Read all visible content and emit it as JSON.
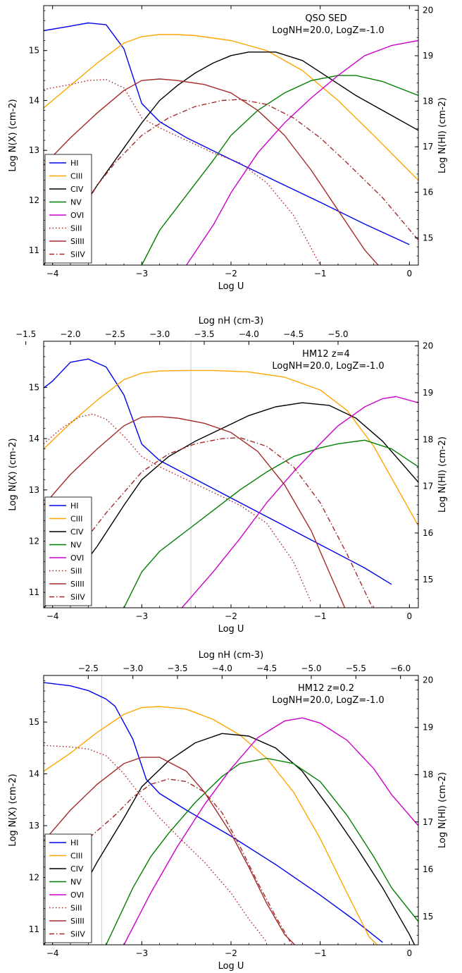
{
  "colors": {
    "HI": "#0000ee",
    "CIII": "#ffa500",
    "CIV": "#000000",
    "NV": "#007f00",
    "OVI": "#cc00cc",
    "SiII": "#b22222",
    "SiIII": "#a52a2a",
    "SiIV": "#a52a2a",
    "frame": "#000000",
    "vline": "#c8c8c8"
  },
  "chart_data": [
    {
      "type": "line",
      "title": "QSO SED",
      "subtitle": "LogNH=20.0, LogZ=-1.0",
      "xlabel": "Log U",
      "ylabel": "Log N(X) (cm-2)",
      "y2label": "Log N(HI) (cm-2)",
      "xlim": [
        -4.1,
        0.1
      ],
      "ylim": [
        10.7,
        15.9
      ],
      "y2lim": [
        14.4,
        20.1
      ],
      "xticks": [
        -4,
        -3,
        -2,
        -1,
        0
      ],
      "xtick_labels": [
        "−4",
        "−3",
        "−2",
        "−1",
        "0"
      ],
      "yticks": [
        11,
        12,
        13,
        14,
        15
      ],
      "yticks2": [
        15,
        16,
        17,
        18,
        19,
        20
      ],
      "legend": "lower-left",
      "series": [
        {
          "name": "HI",
          "style": "solid",
          "axis": "right",
          "x": [
            -4.1,
            -3.8,
            -3.6,
            -3.4,
            -3.2,
            -3.0,
            -2.8,
            -2.5,
            -2.0,
            -1.5,
            -1.0,
            -0.5,
            0.0
          ],
          "y": [
            19.55,
            19.65,
            19.72,
            19.68,
            19.15,
            17.95,
            17.55,
            17.2,
            16.72,
            16.25,
            15.78,
            15.3,
            14.85
          ]
        },
        {
          "name": "CIII",
          "style": "solid",
          "axis": "left",
          "x": [
            -4.1,
            -3.8,
            -3.5,
            -3.2,
            -3.0,
            -2.8,
            -2.6,
            -2.4,
            -2.0,
            -1.6,
            -1.2,
            -0.8,
            -0.4,
            0.1
          ],
          "y": [
            13.85,
            14.3,
            14.75,
            15.15,
            15.28,
            15.32,
            15.32,
            15.3,
            15.2,
            15.0,
            14.6,
            14.0,
            13.3,
            12.4
          ]
        },
        {
          "name": "CIV",
          "style": "solid",
          "axis": "left",
          "x": [
            -4.1,
            -3.8,
            -3.5,
            -3.2,
            -3.0,
            -2.8,
            -2.6,
            -2.4,
            -2.2,
            -2.0,
            -1.8,
            -1.5,
            -1.2,
            -0.9,
            -0.6,
            -0.3,
            0.1
          ],
          "y": [
            10.7,
            11.5,
            12.3,
            13.05,
            13.55,
            14.0,
            14.3,
            14.55,
            14.75,
            14.9,
            14.97,
            14.97,
            14.8,
            14.45,
            14.1,
            13.8,
            13.4
          ]
        },
        {
          "name": "NV",
          "style": "solid",
          "axis": "left",
          "x": [
            -3.0,
            -2.8,
            -2.5,
            -2.2,
            -2.0,
            -1.7,
            -1.4,
            -1.1,
            -0.8,
            -0.6,
            -0.3,
            0.1
          ],
          "y": [
            10.7,
            11.4,
            12.1,
            12.8,
            13.3,
            13.8,
            14.15,
            14.4,
            14.5,
            14.5,
            14.38,
            14.1
          ]
        },
        {
          "name": "OVI",
          "style": "solid",
          "axis": "left",
          "x": [
            -2.5,
            -2.2,
            -2.0,
            -1.7,
            -1.4,
            -1.1,
            -0.8,
            -0.5,
            -0.2,
            0.1
          ],
          "y": [
            10.7,
            11.5,
            12.15,
            12.95,
            13.55,
            14.05,
            14.5,
            14.9,
            15.1,
            15.2
          ]
        },
        {
          "name": "SiII",
          "style": "dotted",
          "axis": "left",
          "x": [
            -4.1,
            -3.8,
            -3.6,
            -3.4,
            -3.2,
            -3.0,
            -2.8,
            -2.5,
            -2.2,
            -1.9,
            -1.6,
            -1.3,
            -1.0
          ],
          "y": [
            14.22,
            14.32,
            14.4,
            14.42,
            14.25,
            13.65,
            13.45,
            13.2,
            12.95,
            12.75,
            12.35,
            11.7,
            10.7
          ]
        },
        {
          "name": "SiIII",
          "style": "solid",
          "axis": "left",
          "x": [
            -4.1,
            -3.8,
            -3.5,
            -3.2,
            -3.0,
            -2.8,
            -2.6,
            -2.3,
            -2.0,
            -1.7,
            -1.4,
            -1.1,
            -0.8,
            -0.5,
            -0.3
          ],
          "y": [
            12.7,
            13.25,
            13.75,
            14.2,
            14.4,
            14.43,
            14.4,
            14.32,
            14.15,
            13.8,
            13.3,
            12.6,
            11.8,
            11.0,
            10.6
          ]
        },
        {
          "name": "SiIV",
          "style": "dashdot",
          "axis": "left",
          "x": [
            -3.9,
            -3.7,
            -3.5,
            -3.3,
            -3.0,
            -2.7,
            -2.4,
            -2.1,
            -1.9,
            -1.6,
            -1.3,
            -1.0,
            -0.7,
            -0.3,
            0.1
          ],
          "y": [
            11.1,
            11.7,
            12.3,
            12.75,
            13.3,
            13.65,
            13.88,
            14.0,
            14.02,
            13.92,
            13.65,
            13.25,
            12.75,
            12.05,
            11.2
          ]
        }
      ]
    },
    {
      "type": "line",
      "title": "HM12 z=4",
      "subtitle": "LogNH=20.0, LogZ=-1.0",
      "xlabel": "Log U",
      "ylabel": "Log N(X) (cm-2)",
      "y2label": "Log N(HI) (cm-2)",
      "top_xlabel": "Log nH (cm-3)",
      "top_ticks": [
        -1.5,
        -2.0,
        -2.5,
        -3.0,
        -3.5,
        -4.0,
        -4.5,
        -5.0
      ],
      "top_tick_labels": [
        "−1.5",
        "−2.0",
        "−2.5",
        "−3.0",
        "−3.5",
        "−4.0",
        "−4.5",
        "−5.0"
      ],
      "top_offset": -5.8,
      "vline_x": -2.45,
      "xlim": [
        -4.1,
        0.1
      ],
      "ylim": [
        10.7,
        15.9
      ],
      "y2lim": [
        14.4,
        20.1
      ],
      "xticks": [
        -4,
        -3,
        -2,
        -1,
        0
      ],
      "xtick_labels": [
        "−4",
        "−3",
        "−2",
        "−1",
        "0"
      ],
      "yticks": [
        11,
        12,
        13,
        14,
        15
      ],
      "yticks2": [
        15,
        16,
        17,
        18,
        19,
        20
      ],
      "legend": "lower-left",
      "series": [
        {
          "name": "HI",
          "style": "solid",
          "axis": "right",
          "x": [
            -4.1,
            -4.0,
            -3.8,
            -3.6,
            -3.4,
            -3.2,
            -3.0,
            -2.8,
            -2.5,
            -2.0,
            -1.5,
            -1.0,
            -0.5,
            -0.2
          ],
          "y": [
            19.1,
            19.25,
            19.65,
            19.72,
            19.55,
            18.95,
            17.9,
            17.55,
            17.25,
            16.75,
            16.25,
            15.75,
            15.25,
            14.9
          ]
        },
        {
          "name": "CIII",
          "style": "solid",
          "axis": "left",
          "x": [
            -4.1,
            -3.8,
            -3.5,
            -3.2,
            -3.0,
            -2.8,
            -2.5,
            -2.2,
            -1.8,
            -1.4,
            -1.0,
            -0.7,
            -0.4,
            0.1
          ],
          "y": [
            13.8,
            14.3,
            14.75,
            15.15,
            15.28,
            15.32,
            15.33,
            15.33,
            15.3,
            15.2,
            14.95,
            14.55,
            13.85,
            12.3
          ]
        },
        {
          "name": "CIV",
          "style": "solid",
          "axis": "left",
          "x": [
            -4.1,
            -3.8,
            -3.5,
            -3.2,
            -3.0,
            -2.7,
            -2.4,
            -2.1,
            -1.8,
            -1.5,
            -1.2,
            -0.9,
            -0.6,
            -0.3,
            0.1
          ],
          "y": [
            10.7,
            11.2,
            11.9,
            12.7,
            13.2,
            13.65,
            13.95,
            14.2,
            14.45,
            14.62,
            14.7,
            14.65,
            14.4,
            13.95,
            13.15
          ]
        },
        {
          "name": "NV",
          "style": "solid",
          "axis": "left",
          "x": [
            -3.2,
            -3.0,
            -2.8,
            -2.5,
            -2.2,
            -1.9,
            -1.6,
            -1.3,
            -1.0,
            -0.8,
            -0.5,
            -0.2,
            0.1
          ],
          "y": [
            10.7,
            11.4,
            11.8,
            12.2,
            12.6,
            13.0,
            13.35,
            13.65,
            13.82,
            13.9,
            13.97,
            13.8,
            13.45
          ]
        },
        {
          "name": "OVI",
          "style": "solid",
          "axis": "left",
          "x": [
            -2.55,
            -2.2,
            -1.9,
            -1.6,
            -1.3,
            -1.0,
            -0.8,
            -0.5,
            -0.3,
            -0.15,
            0.1
          ],
          "y": [
            10.7,
            11.4,
            12.05,
            12.75,
            13.35,
            13.9,
            14.25,
            14.62,
            14.78,
            14.82,
            14.7
          ]
        },
        {
          "name": "SiII",
          "style": "dotted",
          "axis": "left",
          "x": [
            -4.1,
            -3.9,
            -3.7,
            -3.55,
            -3.4,
            -3.2,
            -3.0,
            -2.8,
            -2.5,
            -2.2,
            -1.9,
            -1.6,
            -1.3,
            -1.1
          ],
          "y": [
            13.9,
            14.2,
            14.42,
            14.48,
            14.38,
            14.05,
            13.65,
            13.45,
            13.2,
            12.95,
            12.7,
            12.35,
            11.6,
            10.8
          ]
        },
        {
          "name": "SiIII",
          "style": "solid",
          "axis": "left",
          "x": [
            -4.1,
            -3.8,
            -3.5,
            -3.2,
            -3.0,
            -2.8,
            -2.6,
            -2.3,
            -2.0,
            -1.7,
            -1.4,
            -1.1,
            -0.9,
            -0.7
          ],
          "y": [
            12.7,
            13.3,
            13.8,
            14.25,
            14.42,
            14.43,
            14.4,
            14.3,
            14.12,
            13.75,
            13.1,
            12.2,
            11.4,
            10.6
          ]
        },
        {
          "name": "SiIV",
          "style": "dashdot",
          "axis": "left",
          "x": [
            -4.0,
            -3.8,
            -3.6,
            -3.4,
            -3.2,
            -3.0,
            -2.7,
            -2.4,
            -2.1,
            -1.9,
            -1.6,
            -1.3,
            -1.0,
            -0.7,
            -0.4
          ],
          "y": [
            10.8,
            11.5,
            12.1,
            12.55,
            12.95,
            13.35,
            13.7,
            13.9,
            14.0,
            14.02,
            13.85,
            13.45,
            12.75,
            11.75,
            10.65
          ]
        }
      ]
    },
    {
      "type": "line",
      "title": "HM12 z=0.2",
      "subtitle": "LogNH=20.0, LogZ=-1.0",
      "xlabel": "Log U",
      "ylabel": "Log N(X) (cm-2)",
      "y2label": "Log N(HI) (cm-2)",
      "top_xlabel": "Log nH (cm-3)",
      "top_ticks": [
        -2.5,
        -3.0,
        -3.5,
        -4.0,
        -4.5,
        -5.0,
        -5.5,
        -6.0
      ],
      "top_tick_labels": [
        "−2.5",
        "−3.0",
        "−3.5",
        "−4.0",
        "−4.5",
        "−5.0",
        "−5.5",
        "−6.0"
      ],
      "top_offset": -6.1,
      "vline_x": -3.45,
      "xlim": [
        -4.1,
        0.1
      ],
      "ylim": [
        10.7,
        15.9
      ],
      "y2lim": [
        14.4,
        20.1
      ],
      "xticks": [
        -4,
        -3,
        -2,
        -1,
        0
      ],
      "xtick_labels": [
        "−4",
        "−3",
        "−2",
        "−1",
        "0"
      ],
      "yticks": [
        11,
        12,
        13,
        14,
        15
      ],
      "yticks2": [
        15,
        16,
        17,
        18,
        19,
        20
      ],
      "legend": "lower-left",
      "series": [
        {
          "name": "HI",
          "style": "solid",
          "axis": "right",
          "x": [
            -4.1,
            -3.8,
            -3.6,
            -3.4,
            -3.3,
            -3.1,
            -2.95,
            -2.8,
            -2.5,
            -2.0,
            -1.5,
            -1.0,
            -0.6,
            -0.3
          ],
          "y": [
            19.95,
            19.88,
            19.78,
            19.6,
            19.45,
            18.75,
            17.9,
            17.6,
            17.25,
            16.7,
            16.1,
            15.45,
            14.9,
            14.45
          ]
        },
        {
          "name": "CIII",
          "style": "solid",
          "axis": "left",
          "x": [
            -4.1,
            -3.8,
            -3.5,
            -3.2,
            -3.0,
            -2.8,
            -2.5,
            -2.2,
            -1.9,
            -1.6,
            -1.3,
            -1.0,
            -0.7,
            -0.45,
            -0.3
          ],
          "y": [
            14.05,
            14.4,
            14.8,
            15.15,
            15.28,
            15.3,
            15.25,
            15.05,
            14.75,
            14.3,
            13.65,
            12.75,
            11.7,
            10.85,
            10.6
          ]
        },
        {
          "name": "CIV",
          "style": "solid",
          "axis": "left",
          "x": [
            -4.1,
            -3.8,
            -3.5,
            -3.2,
            -3.0,
            -2.7,
            -2.4,
            -2.1,
            -1.8,
            -1.5,
            -1.2,
            -0.9,
            -0.6,
            -0.3,
            0.0,
            0.1
          ],
          "y": [
            10.7,
            11.35,
            12.3,
            13.15,
            13.75,
            14.25,
            14.6,
            14.78,
            14.73,
            14.5,
            14.05,
            13.35,
            12.6,
            11.8,
            10.9,
            10.55
          ]
        },
        {
          "name": "NV",
          "style": "solid",
          "axis": "left",
          "x": [
            -3.4,
            -3.1,
            -2.9,
            -2.7,
            -2.4,
            -2.1,
            -1.9,
            -1.6,
            -1.3,
            -1.0,
            -0.7,
            -0.4,
            -0.2,
            0.1
          ],
          "y": [
            10.7,
            11.8,
            12.4,
            12.85,
            13.45,
            13.95,
            14.2,
            14.3,
            14.2,
            13.85,
            13.2,
            12.4,
            11.8,
            11.15
          ]
        },
        {
          "name": "OVI",
          "style": "solid",
          "axis": "left",
          "x": [
            -3.2,
            -2.9,
            -2.6,
            -2.3,
            -2.0,
            -1.7,
            -1.4,
            -1.2,
            -1.0,
            -0.7,
            -0.4,
            -0.2,
            0.1
          ],
          "y": [
            10.7,
            11.7,
            12.6,
            13.4,
            14.1,
            14.7,
            15.02,
            15.08,
            14.98,
            14.65,
            14.1,
            13.6,
            13.0
          ]
        },
        {
          "name": "SiII",
          "style": "dotted",
          "axis": "left",
          "x": [
            -4.1,
            -3.8,
            -3.6,
            -3.4,
            -3.2,
            -3.0,
            -2.8,
            -2.6,
            -2.3,
            -2.0,
            -1.8,
            -1.6
          ],
          "y": [
            14.55,
            14.52,
            14.48,
            14.35,
            14.0,
            13.55,
            13.15,
            12.8,
            12.3,
            11.7,
            11.2,
            10.75
          ]
        },
        {
          "name": "SiIII",
          "style": "solid",
          "axis": "left",
          "x": [
            -4.1,
            -3.8,
            -3.5,
            -3.2,
            -3.0,
            -2.8,
            -2.5,
            -2.3,
            -2.0,
            -1.8,
            -1.6,
            -1.4,
            -1.2
          ],
          "y": [
            12.7,
            13.3,
            13.8,
            14.2,
            14.32,
            14.32,
            14.05,
            13.65,
            12.85,
            12.2,
            11.5,
            10.9,
            10.55
          ]
        },
        {
          "name": "SiIV",
          "style": "dashdot",
          "axis": "left",
          "x": [
            -3.9,
            -3.6,
            -3.3,
            -3.1,
            -2.9,
            -2.7,
            -2.5,
            -2.3,
            -2.1,
            -1.9,
            -1.7,
            -1.5,
            -1.3
          ],
          "y": [
            12.2,
            12.75,
            13.2,
            13.55,
            13.8,
            13.9,
            13.85,
            13.65,
            13.25,
            12.6,
            11.9,
            11.25,
            10.65
          ]
        }
      ]
    }
  ]
}
